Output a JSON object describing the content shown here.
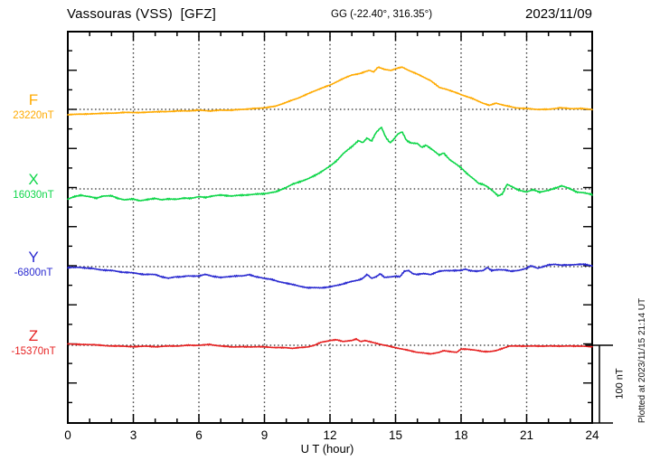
{
  "header": {
    "title_left": "Vassouras (VSS)  [GFZ]",
    "coords": "GG (-22.40°, 316.35°)",
    "date": "2023/11/09"
  },
  "footer": {
    "plotted_at": "Plotted at 2023/11/15 21:14 UT"
  },
  "chart_data": {
    "type": "line",
    "title": "Vassouras (VSS) [GFZ] magnetogram 2023/11/09",
    "xlabel": "U T (hour)",
    "x_range": [
      0,
      24
    ],
    "x_ticks": [
      0,
      3,
      6,
      9,
      12,
      15,
      18,
      21,
      24
    ],
    "x_minor_step_hours": 1,
    "grid": "dotted vertical lines every 3 h; dotted horizontal line at each channel baseline",
    "legend_position": "left margin, one colored label per channel",
    "scale_bar": {
      "label": "100 nT",
      "nT": 100
    },
    "y_minor_tick_nT": 25,
    "series": [
      {
        "name": "F",
        "color": "#ffaa00",
        "baseline_label": "23220nT",
        "baseline_nT": 23220,
        "unit": "nT",
        "points_offset_nT": [
          [
            0,
            -7
          ],
          [
            0.5,
            -6
          ],
          [
            1,
            -6
          ],
          [
            1.5,
            -5
          ],
          [
            2,
            -5
          ],
          [
            2.5,
            -4
          ],
          [
            3,
            -4
          ],
          [
            3.5,
            -4
          ],
          [
            4,
            -3
          ],
          [
            4.5,
            -3
          ],
          [
            5,
            -2
          ],
          [
            5.5,
            -2
          ],
          [
            6,
            -1
          ],
          [
            6.5,
            -2
          ],
          [
            7,
            -1
          ],
          [
            7.5,
            -1
          ],
          [
            8,
            0
          ],
          [
            8.5,
            1
          ],
          [
            9,
            2
          ],
          [
            9.5,
            4
          ],
          [
            10,
            9
          ],
          [
            10.5,
            14
          ],
          [
            11,
            20
          ],
          [
            11.5,
            26
          ],
          [
            12,
            31
          ],
          [
            12.5,
            38
          ],
          [
            13,
            44
          ],
          [
            13.4,
            46
          ],
          [
            13.8,
            50
          ],
          [
            14,
            48
          ],
          [
            14.2,
            54
          ],
          [
            14.5,
            51
          ],
          [
            14.8,
            50
          ],
          [
            15,
            52
          ],
          [
            15.3,
            54
          ],
          [
            15.6,
            50
          ],
          [
            16,
            45
          ],
          [
            16.3,
            41
          ],
          [
            16.6,
            37
          ],
          [
            17,
            28
          ],
          [
            17.3,
            26
          ],
          [
            17.6,
            23
          ],
          [
            18,
            19
          ],
          [
            18.5,
            14
          ],
          [
            19,
            8
          ],
          [
            19.3,
            5
          ],
          [
            19.6,
            8
          ],
          [
            20,
            5
          ],
          [
            20.5,
            2
          ],
          [
            21,
            1
          ],
          [
            21.5,
            0
          ],
          [
            22,
            0
          ],
          [
            22.5,
            2
          ],
          [
            23,
            1
          ],
          [
            23.5,
            1
          ],
          [
            24,
            0
          ]
        ]
      },
      {
        "name": "X",
        "color": "#0ed649",
        "baseline_label": "16030nT",
        "baseline_nT": 16030,
        "unit": "nT",
        "points_offset_nT": [
          [
            0,
            -13
          ],
          [
            0.3,
            -10
          ],
          [
            0.6,
            -8
          ],
          [
            1,
            -10
          ],
          [
            1.3,
            -12
          ],
          [
            1.6,
            -9
          ],
          [
            2,
            -9
          ],
          [
            2.3,
            -12
          ],
          [
            2.6,
            -14
          ],
          [
            3,
            -13
          ],
          [
            3.3,
            -15
          ],
          [
            3.6,
            -14
          ],
          [
            4,
            -12
          ],
          [
            4.3,
            -14
          ],
          [
            4.6,
            -13
          ],
          [
            5,
            -13
          ],
          [
            5.3,
            -12
          ],
          [
            5.6,
            -12
          ],
          [
            6,
            -10
          ],
          [
            6.3,
            -11
          ],
          [
            6.6,
            -9
          ],
          [
            7,
            -8
          ],
          [
            7.5,
            -9
          ],
          [
            8,
            -8
          ],
          [
            8.5,
            -7
          ],
          [
            9,
            -6
          ],
          [
            9.5,
            -4
          ],
          [
            10,
            2
          ],
          [
            10.3,
            6
          ],
          [
            10.6,
            9
          ],
          [
            11,
            13
          ],
          [
            11.3,
            17
          ],
          [
            11.6,
            22
          ],
          [
            12,
            29
          ],
          [
            12.3,
            36
          ],
          [
            12.6,
            45
          ],
          [
            13,
            54
          ],
          [
            13.3,
            62
          ],
          [
            13.5,
            59
          ],
          [
            13.7,
            65
          ],
          [
            13.9,
            61
          ],
          [
            14.1,
            72
          ],
          [
            14.35,
            79
          ],
          [
            14.55,
            66
          ],
          [
            14.75,
            59
          ],
          [
            14.9,
            63
          ],
          [
            15.1,
            70
          ],
          [
            15.3,
            73
          ],
          [
            15.5,
            62
          ],
          [
            15.7,
            59
          ],
          [
            16,
            58
          ],
          [
            16.2,
            53
          ],
          [
            16.4,
            56
          ],
          [
            16.7,
            50
          ],
          [
            17,
            43
          ],
          [
            17.2,
            46
          ],
          [
            17.5,
            37
          ],
          [
            17.8,
            31
          ],
          [
            18,
            27
          ],
          [
            18.3,
            19
          ],
          [
            18.6,
            12
          ],
          [
            18.8,
            7
          ],
          [
            19,
            6
          ],
          [
            19.2,
            3
          ],
          [
            19.5,
            -4
          ],
          [
            19.7,
            -9
          ],
          [
            19.9,
            -6
          ],
          [
            20.1,
            6
          ],
          [
            20.3,
            3
          ],
          [
            20.6,
            -1
          ],
          [
            21,
            -4
          ],
          [
            21.3,
            -1
          ],
          [
            21.6,
            -4
          ],
          [
            22,
            -2
          ],
          [
            22.3,
            1
          ],
          [
            22.6,
            4
          ],
          [
            23,
            0
          ],
          [
            23.3,
            -4
          ],
          [
            23.6,
            -5
          ],
          [
            24,
            -7
          ]
        ]
      },
      {
        "name": "Y",
        "color": "#2a2ad0",
        "baseline_label": "-6800nT",
        "baseline_nT": -6800,
        "unit": "nT",
        "points_offset_nT": [
          [
            0,
            -1
          ],
          [
            0.5,
            -1
          ],
          [
            1,
            -2
          ],
          [
            1.5,
            -4
          ],
          [
            2,
            -5
          ],
          [
            2.5,
            -7
          ],
          [
            3,
            -8
          ],
          [
            3.5,
            -10
          ],
          [
            4,
            -10
          ],
          [
            4.3,
            -13
          ],
          [
            4.6,
            -15
          ],
          [
            4.9,
            -13
          ],
          [
            5.2,
            -13
          ],
          [
            5.5,
            -12
          ],
          [
            6,
            -12
          ],
          [
            6.3,
            -10
          ],
          [
            6.6,
            -12
          ],
          [
            7,
            -14
          ],
          [
            7.3,
            -13
          ],
          [
            7.6,
            -12
          ],
          [
            8,
            -12
          ],
          [
            8.3,
            -10
          ],
          [
            8.6,
            -13
          ],
          [
            9,
            -15
          ],
          [
            9.3,
            -16
          ],
          [
            9.6,
            -19
          ],
          [
            10,
            -21
          ],
          [
            10.3,
            -23
          ],
          [
            10.6,
            -25
          ],
          [
            11,
            -27
          ],
          [
            11.3,
            -27
          ],
          [
            11.6,
            -27
          ],
          [
            12,
            -26
          ],
          [
            12.3,
            -24
          ],
          [
            12.6,
            -22
          ],
          [
            13,
            -19
          ],
          [
            13.3,
            -17
          ],
          [
            13.5,
            -15
          ],
          [
            13.7,
            -10
          ],
          [
            13.9,
            -15
          ],
          [
            14.1,
            -13
          ],
          [
            14.3,
            -9
          ],
          [
            14.5,
            -14
          ],
          [
            14.8,
            -13
          ],
          [
            15,
            -12
          ],
          [
            15.2,
            -13
          ],
          [
            15.4,
            -6
          ],
          [
            15.6,
            -5
          ],
          [
            15.8,
            -9
          ],
          [
            16,
            -10
          ],
          [
            16.3,
            -9
          ],
          [
            16.6,
            -10
          ],
          [
            17,
            -6
          ],
          [
            17.3,
            -5
          ],
          [
            17.6,
            -5
          ],
          [
            18,
            -5
          ],
          [
            18.2,
            -3
          ],
          [
            18.4,
            -5
          ],
          [
            18.7,
            -6
          ],
          [
            19,
            -5
          ],
          [
            19.2,
            -1
          ],
          [
            19.4,
            -5
          ],
          [
            19.7,
            -4
          ],
          [
            20,
            -4
          ],
          [
            20.3,
            -6
          ],
          [
            20.6,
            -5
          ],
          [
            21,
            -2
          ],
          [
            21.2,
            1
          ],
          [
            21.5,
            -2
          ],
          [
            22,
            2
          ],
          [
            22.3,
            3
          ],
          [
            22.6,
            2
          ],
          [
            23,
            2
          ],
          [
            23.3,
            3
          ],
          [
            23.6,
            3
          ],
          [
            24,
            1
          ]
        ]
      },
      {
        "name": "Z",
        "color": "#e62222",
        "baseline_label": "-15370nT",
        "baseline_nT": -15370,
        "unit": "nT",
        "points_offset_nT": [
          [
            0,
            2
          ],
          [
            0.5,
            1
          ],
          [
            1,
            1
          ],
          [
            1.5,
            0
          ],
          [
            2,
            -1
          ],
          [
            2.5,
            -1
          ],
          [
            3,
            -2
          ],
          [
            3.5,
            -1
          ],
          [
            4,
            -2
          ],
          [
            4.5,
            -1
          ],
          [
            5,
            -1
          ],
          [
            5.5,
            0
          ],
          [
            6,
            0
          ],
          [
            6.5,
            1
          ],
          [
            7,
            -1
          ],
          [
            7.5,
            -2
          ],
          [
            8,
            -2
          ],
          [
            8.5,
            -2
          ],
          [
            9,
            -2
          ],
          [
            9.5,
            -3
          ],
          [
            10,
            -3
          ],
          [
            10.3,
            -4
          ],
          [
            10.6,
            -3
          ],
          [
            11,
            -2
          ],
          [
            11.3,
            0
          ],
          [
            11.6,
            4
          ],
          [
            12,
            6
          ],
          [
            12.3,
            7
          ],
          [
            12.6,
            5
          ],
          [
            13,
            6
          ],
          [
            13.2,
            8
          ],
          [
            13.4,
            5
          ],
          [
            13.6,
            6
          ],
          [
            13.9,
            4
          ],
          [
            14.2,
            2
          ],
          [
            14.5,
            0
          ],
          [
            15,
            -3
          ],
          [
            15.5,
            -6
          ],
          [
            16,
            -9
          ],
          [
            16.3,
            -10
          ],
          [
            16.6,
            -11
          ],
          [
            17,
            -9
          ],
          [
            17.2,
            -7
          ],
          [
            17.5,
            -8
          ],
          [
            17.8,
            -9
          ],
          [
            18,
            -5
          ],
          [
            18.3,
            -5
          ],
          [
            18.6,
            -6
          ],
          [
            19,
            -8
          ],
          [
            19.3,
            -8
          ],
          [
            19.6,
            -7
          ],
          [
            19.9,
            -4
          ],
          [
            20.2,
            -1
          ],
          [
            20.5,
            -1
          ],
          [
            21,
            -1
          ],
          [
            21.5,
            -1
          ],
          [
            22,
            -1
          ],
          [
            22.5,
            -1
          ],
          [
            23,
            -1
          ],
          [
            23.5,
            -1
          ],
          [
            24,
            -2
          ]
        ]
      }
    ]
  }
}
